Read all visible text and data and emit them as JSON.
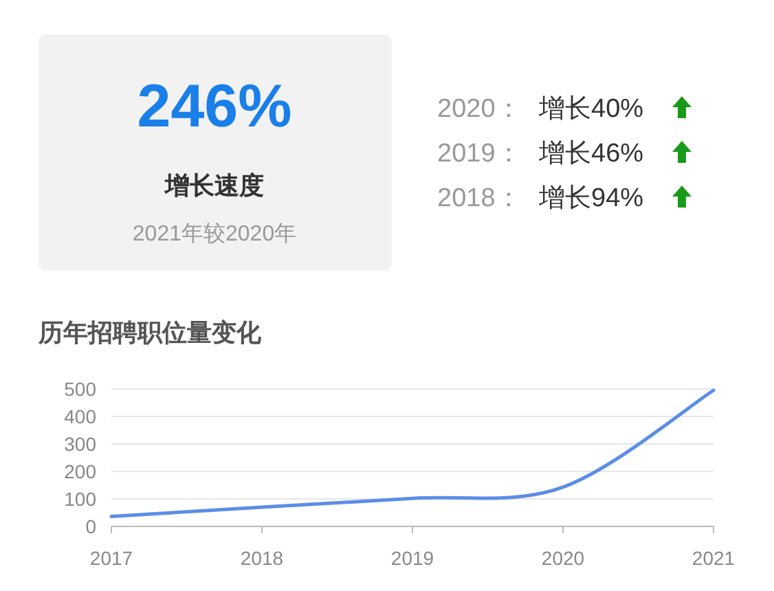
{
  "chart_data": [
    {
      "type": "other",
      "title": "246%",
      "subtitle": "增长速度",
      "annotations": [
        "2021年较2020年",
        "2020：",
        "增长40%",
        "2019：",
        "增长46%",
        "2018：",
        "增长94%"
      ]
    },
    {
      "type": "line",
      "title": "历年招聘职位量变化",
      "x": [
        2017,
        2018,
        2019,
        2020,
        2021
      ],
      "series": [
        {
          "color": "#5b8ee6",
          "values": [
            36,
            70,
            102,
            143,
            495
          ]
        }
      ],
      "xlim": [
        2017,
        2021
      ],
      "xticks": [
        2017,
        2018,
        2019,
        2020,
        2021
      ],
      "ylim": [
        0,
        500
      ],
      "yticks": [
        0,
        100,
        200,
        300,
        400,
        500
      ],
      "grid": "y",
      "marker": "none",
      "line_style": "solid"
    }
  ]
}
